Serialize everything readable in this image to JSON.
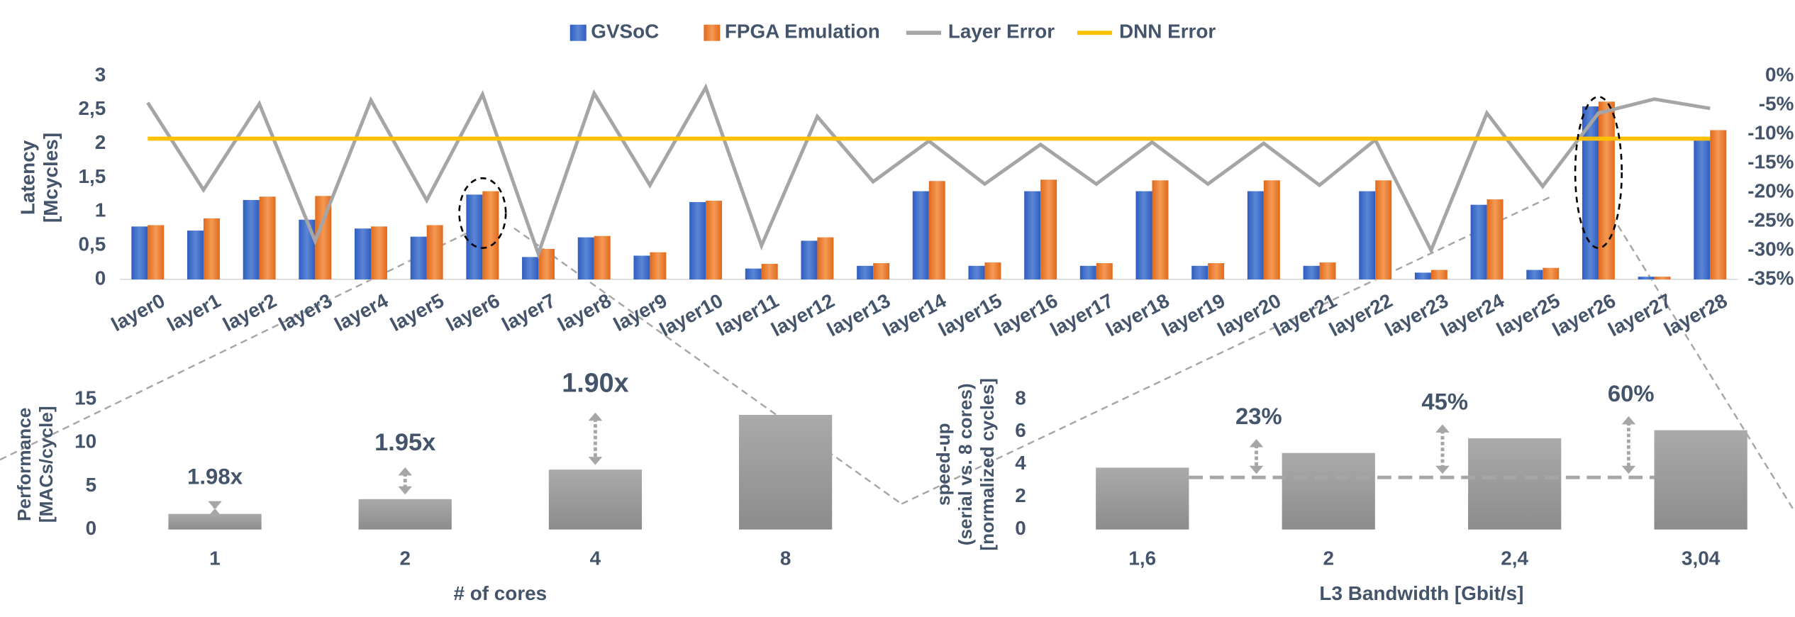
{
  "chart_data": [
    {
      "type": "combo",
      "ylabel": [
        "Latency",
        "[Mcycles]"
      ],
      "categories": [
        "layer0",
        "layer1",
        "layer2",
        "layer3",
        "layer4",
        "layer5",
        "layer6",
        "layer7",
        "layer8",
        "layer9",
        "layer10",
        "layer11",
        "layer12",
        "layer13",
        "layer14",
        "layer15",
        "layer16",
        "layer17",
        "layer18",
        "layer19",
        "layer20",
        "layer21",
        "layer22",
        "layer23",
        "layer24",
        "layer25",
        "layer26",
        "layer27",
        "layer28"
      ],
      "series": [
        {
          "name": "GVSoC",
          "type": "bar",
          "color": "#4472c4",
          "values": [
            0.78,
            0.72,
            1.17,
            0.88,
            0.75,
            0.63,
            1.25,
            0.33,
            0.62,
            0.35,
            1.14,
            0.16,
            0.57,
            0.2,
            1.3,
            0.2,
            1.3,
            0.2,
            1.3,
            0.2,
            1.3,
            0.2,
            1.3,
            0.1,
            1.1,
            0.14,
            2.55,
            0.04,
            2.08
          ]
        },
        {
          "name": "FPGA Emulation",
          "type": "bar",
          "color": "#ed7d31",
          "values": [
            0.8,
            0.9,
            1.22,
            1.23,
            0.78,
            0.8,
            1.3,
            0.45,
            0.64,
            0.4,
            1.16,
            0.23,
            0.62,
            0.24,
            1.45,
            0.25,
            1.47,
            0.24,
            1.46,
            0.24,
            1.46,
            0.25,
            1.46,
            0.14,
            1.18,
            0.17,
            2.62,
            0.04,
            2.2
          ]
        },
        {
          "name": "Layer Error",
          "type": "line",
          "axis": "y2",
          "color": "#a5a5a5",
          "values": [
            -4.6,
            -19.6,
            -4.8,
            -28.4,
            -4.2,
            -21.4,
            -3.2,
            -30.6,
            -3,
            -18.8,
            -2,
            -29.2,
            -7,
            -18.2,
            -11.2,
            -18.6,
            -11.8,
            -18.6,
            -11.4,
            -18.6,
            -11.6,
            -18.8,
            -11,
            -30,
            -6.4,
            -19,
            -6.4,
            -4,
            -5.6
          ]
        },
        {
          "name": "DNN Error",
          "type": "line",
          "axis": "y2",
          "color": "#ffc000",
          "values": [
            -10.8,
            -10.8,
            -10.8,
            -10.8,
            -10.8,
            -10.8,
            -10.8,
            -10.8,
            -10.8,
            -10.8,
            -10.8,
            -10.8,
            -10.8,
            -10.8,
            -10.8,
            -10.8,
            -10.8,
            -10.8,
            -10.8,
            -10.8,
            -10.8,
            -10.8,
            -10.8,
            -10.8,
            -10.8,
            -10.8,
            -10.8,
            -10.8,
            -10.8
          ]
        }
      ],
      "ylim": [
        0,
        3
      ],
      "yticks": [
        0,
        {
          "value": 0.5,
          "label": "0,5"
        },
        1,
        {
          "value": 1.5,
          "label": "1,5"
        },
        2,
        {
          "value": 2.5,
          "label": "2,5"
        },
        3
      ],
      "y2lim": [
        -35,
        0
      ],
      "y2ticks": [
        {
          "value": 0,
          "label": "0%"
        },
        {
          "value": -5,
          "label": "-5%"
        },
        {
          "value": -10,
          "label": "-10%"
        },
        {
          "value": -15,
          "label": "-15%"
        },
        {
          "value": -20,
          "label": "-20%"
        },
        {
          "value": -25,
          "label": "-25%"
        },
        {
          "value": -30,
          "label": "-30%"
        },
        {
          "value": -35,
          "label": "-35%"
        }
      ],
      "legend": "top"
    },
    {
      "type": "bar",
      "ylabel": [
        "Performance",
        "[MACs/cycle]"
      ],
      "xlabel": "# of cores",
      "categories": [
        "1",
        "2",
        "4",
        "8"
      ],
      "values": [
        1.8,
        3.5,
        6.9,
        13.2
      ],
      "color": "#a6a6a6",
      "ylim": [
        0,
        15
      ],
      "yticks": [
        0,
        5,
        10,
        15
      ],
      "annotations": [
        "1.98x",
        "1.95x",
        "1.90x"
      ]
    },
    {
      "type": "bar",
      "ylabel": [
        "speed-up",
        "(serial vs. 8 cores)",
        "[normalized cycles]"
      ],
      "xlabel": "L3  Bandwidth [Gbit/s]",
      "categories": [
        "1,6",
        "2",
        "2,4",
        "3,04"
      ],
      "values": [
        3.8,
        4.7,
        5.6,
        6.1
      ],
      "color": "#a6a6a6",
      "reference_line": 3.2,
      "ylim": [
        0,
        8
      ],
      "yticks": [
        0,
        2,
        4,
        6,
        8
      ],
      "annotations": [
        "23%",
        "45%",
        "60%"
      ]
    }
  ]
}
